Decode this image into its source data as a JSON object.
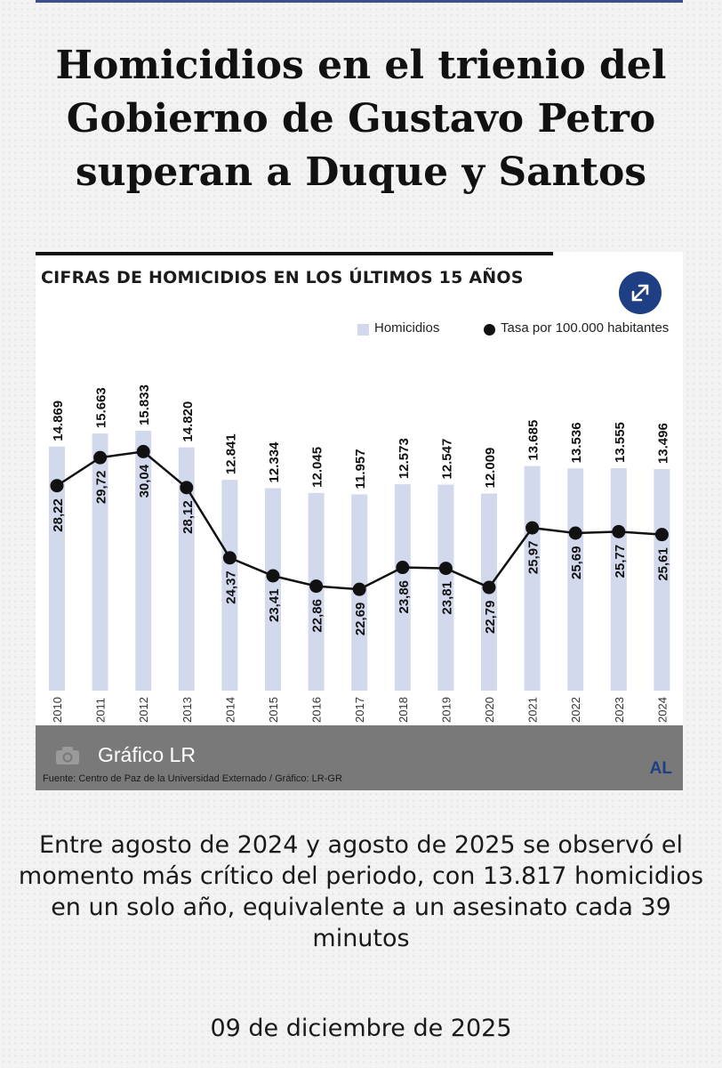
{
  "headline": "Homicidios en el trienio del Gobierno de Gustavo Petro superan a Duque y Santos",
  "chart_data": {
    "type": "bar",
    "title": "CIFRAS DE HOMICIDIOS EN LOS ÚLTIMOS 15 AÑOS",
    "categories": [
      "2010",
      "2011",
      "2012",
      "2013",
      "2014",
      "2015",
      "2016",
      "2017",
      "2018",
      "2019",
      "2020",
      "2021",
      "2022",
      "2023",
      "2024"
    ],
    "series": [
      {
        "name": "Homicidios",
        "type": "bar",
        "color": "#d3d9ec",
        "values": [
          14869,
          15663,
          15833,
          14820,
          12841,
          12334,
          12045,
          11957,
          12573,
          12547,
          12009,
          13685,
          13536,
          13555,
          13496
        ],
        "labels": [
          "14.869",
          "15.663",
          "15.833",
          "14.820",
          "12.841",
          "12.334",
          "12.045",
          "11.957",
          "12.573",
          "12.547",
          "12.009",
          "13.685",
          "13.536",
          "13.555",
          "13.496"
        ]
      },
      {
        "name": "Tasa por 100.000 habitantes",
        "type": "line",
        "color": "#111111",
        "values": [
          28.22,
          29.72,
          30.04,
          28.12,
          24.37,
          23.41,
          22.86,
          22.69,
          23.86,
          23.81,
          22.79,
          25.97,
          25.69,
          25.77,
          25.61
        ],
        "labels": [
          "28,22",
          "29,72",
          "30,04",
          "28,12",
          "24,37",
          "23,41",
          "22,86",
          "22,69",
          "23,86",
          "23,81",
          "22,79",
          "25,97",
          "25,69",
          "25,77",
          "25,61"
        ]
      }
    ],
    "ylim_bars": [
      0,
      18000
    ],
    "ylim_rate": [
      16,
      35
    ],
    "legend_position": "top-right",
    "grid": false
  },
  "footer": {
    "title": "Gráfico LR",
    "logo": "AL",
    "source": "Fuente: Centro de Paz de la Universidad Externado / Gráfico: LR-GR"
  },
  "summary": "Entre agosto de 2024 y agosto de 2025 se observó el momento más crítico del periodo, con 13.817 homicidios en un solo año, equivalente a un asesinato cada 39 minutos",
  "date": "09 de diciembre de 2025",
  "icons": {
    "expand": "expand-arrows-icon",
    "camera": "camera-icon"
  }
}
